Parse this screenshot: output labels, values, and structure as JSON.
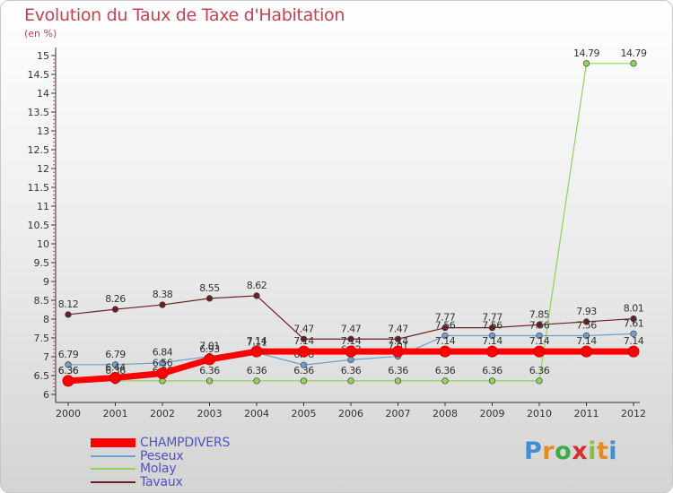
{
  "title": "Evolution du Taux de Taxe d'Habitation",
  "unit_label": "(en %)",
  "brand": {
    "letters": [
      "P",
      "r",
      "o",
      "x",
      "i",
      "t",
      "i"
    ],
    "colors": [
      "#3f8fd2",
      "#e58a1f",
      "#3fae49",
      "#d8302f",
      "#8bbf3f",
      "#e58a1f",
      "#3f8fd2"
    ]
  },
  "chart_data": {
    "type": "line",
    "title": "Evolution du Taux de Taxe d'Habitation",
    "ylabel": "(en %)",
    "xlabel": "",
    "x": [
      "2000",
      "2001",
      "2002",
      "2003",
      "2004",
      "2005",
      "2006",
      "2007",
      "2008",
      "2009",
      "2010",
      "2011",
      "2012"
    ],
    "ylim": [
      6,
      15
    ],
    "yticks": [
      "6",
      "6.5",
      "7",
      "7.5",
      "8",
      "8.5",
      "9",
      "9.5",
      "10",
      "10.5",
      "11",
      "11.5",
      "12",
      "12.5",
      "13",
      "13.5",
      "14",
      "14.5",
      "15"
    ],
    "grid": false,
    "legend_position": "bottom-left",
    "series": [
      {
        "name": "Tavaux",
        "color": "#6b1f23",
        "values": [
          8.12,
          8.26,
          8.38,
          8.55,
          8.62,
          7.47,
          7.47,
          7.47,
          7.77,
          7.77,
          7.85,
          7.93,
          8.01
        ],
        "labels": [
          "8.12",
          "8.26",
          "8.38",
          "8.55",
          "8.62",
          "7.47",
          "7.47",
          "7.47",
          "7.77",
          "7.77",
          "7.85",
          "7.93",
          "8.01"
        ]
      },
      {
        "name": "Molay",
        "color": "#8fd35a",
        "values": [
          6.36,
          6.36,
          6.36,
          6.36,
          6.36,
          6.36,
          6.36,
          6.36,
          6.36,
          6.36,
          6.36,
          14.79,
          14.79
        ],
        "labels": [
          "6.36",
          "6.36",
          "6.36",
          "6.36",
          "6.36",
          "6.36",
          "6.36",
          "6.36",
          "6.36",
          "6.36",
          "6.36",
          "14.79",
          "14.79"
        ]
      },
      {
        "name": "Peseux",
        "color": "#6e9fcf",
        "values": [
          6.79,
          6.79,
          6.84,
          7.01,
          7.11,
          6.78,
          6.92,
          7.01,
          7.56,
          7.56,
          7.56,
          7.56,
          7.61
        ],
        "labels": [
          "6.79",
          "6.79",
          "6.84",
          "7.01",
          "7.11",
          "6.78",
          "6.92",
          "7.01",
          "7.56",
          "7.56",
          "7.56",
          "7.56",
          "7.61"
        ]
      },
      {
        "name": "CHAMPDIVERS",
        "color": "#ff0000",
        "values": [
          6.36,
          6.44,
          6.56,
          6.93,
          7.14,
          7.14,
          7.14,
          7.14,
          7.14,
          7.14,
          7.14,
          7.14,
          7.14
        ],
        "labels": [
          "6.36",
          "6.44",
          "6.56",
          "6.93",
          "7.14",
          "7.14",
          "7.14",
          "7.14",
          "7.14",
          "7.14",
          "7.14",
          "7.14",
          "7.14"
        ]
      }
    ],
    "legend": [
      "CHAMPDIVERS",
      "Peseux",
      "Molay",
      "Tavaux"
    ]
  }
}
